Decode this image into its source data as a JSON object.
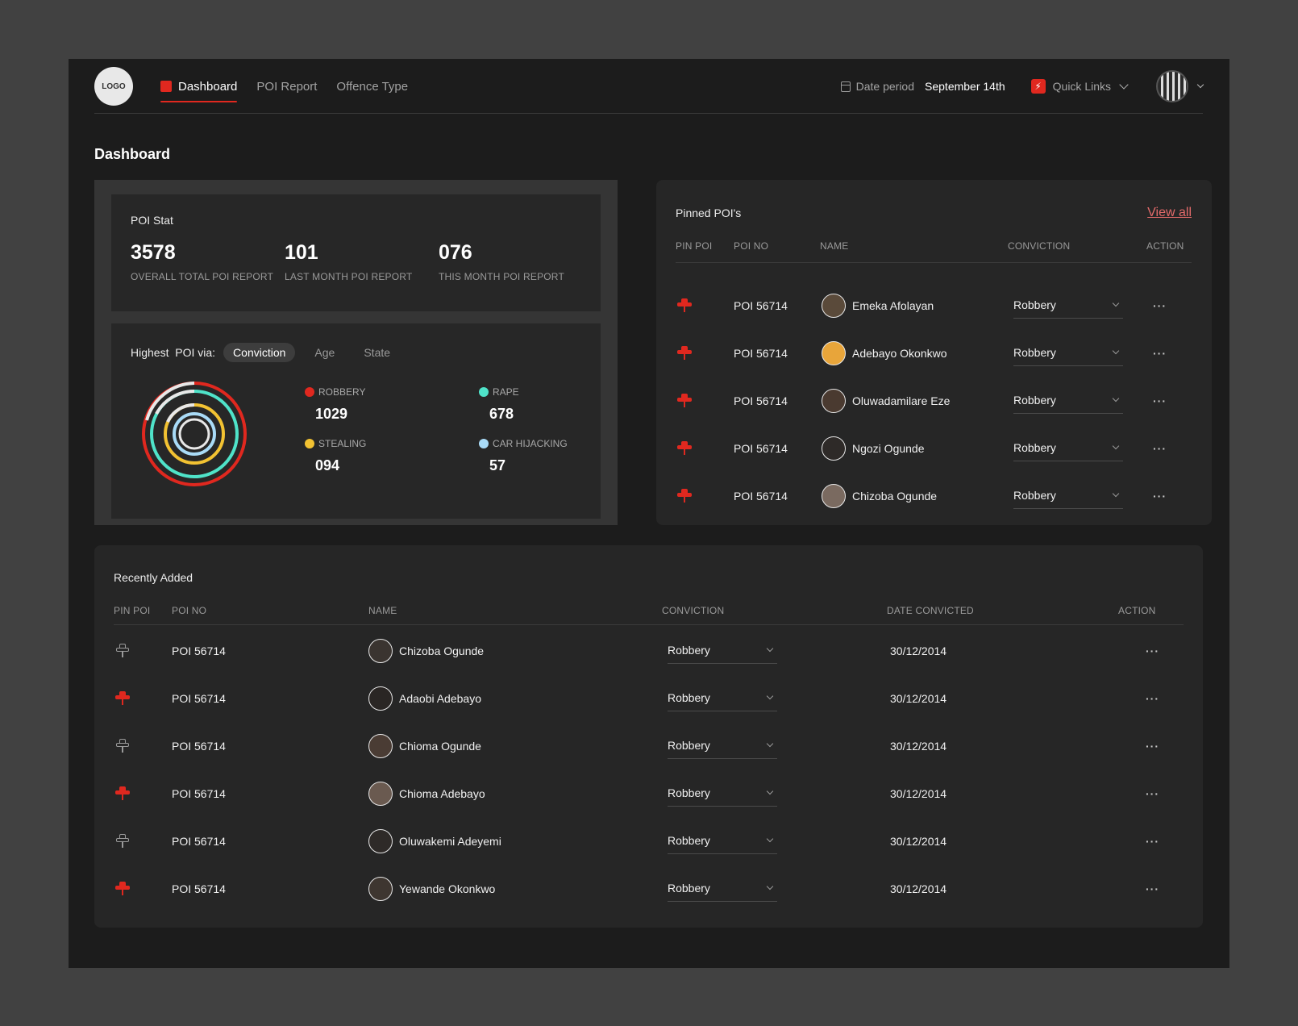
{
  "header": {
    "logo": "LOGO",
    "nav": [
      {
        "label": "Dashboard",
        "active": true
      },
      {
        "label": "POI Report",
        "active": false
      },
      {
        "label": "Offence Type",
        "active": false
      }
    ],
    "date_label": "Date period",
    "date_value": "September 14th",
    "quick_links": "Quick Links"
  },
  "page_title": "Dashboard",
  "poi_stat": {
    "title": "POI Stat",
    "stats": [
      {
        "value": "3578",
        "label": "OVERALL TOTAL POI REPORT"
      },
      {
        "value": "101",
        "label": "LAST MONTH POI REPORT"
      },
      {
        "value": "076",
        "label": "THIS MONTH POI REPORT"
      }
    ]
  },
  "highest": {
    "label": "Highest  POI via:",
    "filters": [
      "Conviction",
      "Age",
      "State"
    ],
    "active_filter": "Conviction",
    "legend": [
      {
        "name": "ROBBERY",
        "value": "1029",
        "color": "#e0281f"
      },
      {
        "name": "RAPE",
        "value": "678",
        "color": "#4fe3c9"
      },
      {
        "name": "STEALING",
        "value": "094",
        "color": "#f2c232"
      },
      {
        "name": "CAR HIJACKING",
        "value": "57",
        "color": "#a9dbf7"
      }
    ]
  },
  "pinned": {
    "title": "Pinned POI's",
    "view_all": "View all",
    "headers": [
      "PIN POI",
      "POI NO",
      "NAME",
      "CONVICTION",
      "ACTION"
    ],
    "rows": [
      {
        "poi_no": "POI 56714",
        "name": "Emeka Afolayan",
        "conviction": "Robbery",
        "avatar_color": "#5a4a3a"
      },
      {
        "poi_no": "POI 56714",
        "name": "Adebayo Okonkwo",
        "conviction": "Robbery",
        "avatar_color": "#e8a53a"
      },
      {
        "poi_no": "POI 56714",
        "name": "Oluwadamilare Eze",
        "conviction": "Robbery",
        "avatar_color": "#4a3a30"
      },
      {
        "poi_no": "POI 56714",
        "name": "Ngozi Ogunde",
        "conviction": "Robbery",
        "avatar_color": "#2e2a28"
      },
      {
        "poi_no": "POI 56714",
        "name": "Chizoba Ogunde",
        "conviction": "Robbery",
        "avatar_color": "#7a6a60"
      }
    ]
  },
  "recent": {
    "title": "Recently Added",
    "headers": [
      "PIN POI",
      "POI NO",
      "NAME",
      "CONVICTION",
      "DATE CONVICTED",
      "ACTION"
    ],
    "rows": [
      {
        "pinned": false,
        "poi_no": "POI 56714",
        "name": "Chizoba Ogunde",
        "conviction": "Robbery",
        "date": "30/12/2014",
        "avatar_color": "#3a3430"
      },
      {
        "pinned": true,
        "poi_no": "POI 56714",
        "name": "Adaobi Adebayo",
        "conviction": "Robbery",
        "date": "30/12/2014",
        "avatar_color": "#2a2624"
      },
      {
        "pinned": false,
        "poi_no": "POI 56714",
        "name": "Chioma Ogunde",
        "conviction": "Robbery",
        "date": "30/12/2014",
        "avatar_color": "#4a3c34"
      },
      {
        "pinned": true,
        "poi_no": "POI 56714",
        "name": "Chioma Adebayo",
        "conviction": "Robbery",
        "date": "30/12/2014",
        "avatar_color": "#6a5a50"
      },
      {
        "pinned": false,
        "poi_no": "POI 56714",
        "name": "Oluwakemi Adeyemi",
        "conviction": "Robbery",
        "date": "30/12/2014",
        "avatar_color": "#2e2a28"
      },
      {
        "pinned": true,
        "poi_no": "POI 56714",
        "name": "Yewande Okonkwo",
        "conviction": "Robbery",
        "date": "30/12/2014",
        "avatar_color": "#3e3630"
      }
    ]
  },
  "colors": {
    "accent": "#e0281f",
    "background": "#1c1c1c",
    "panel": "#262626"
  }
}
